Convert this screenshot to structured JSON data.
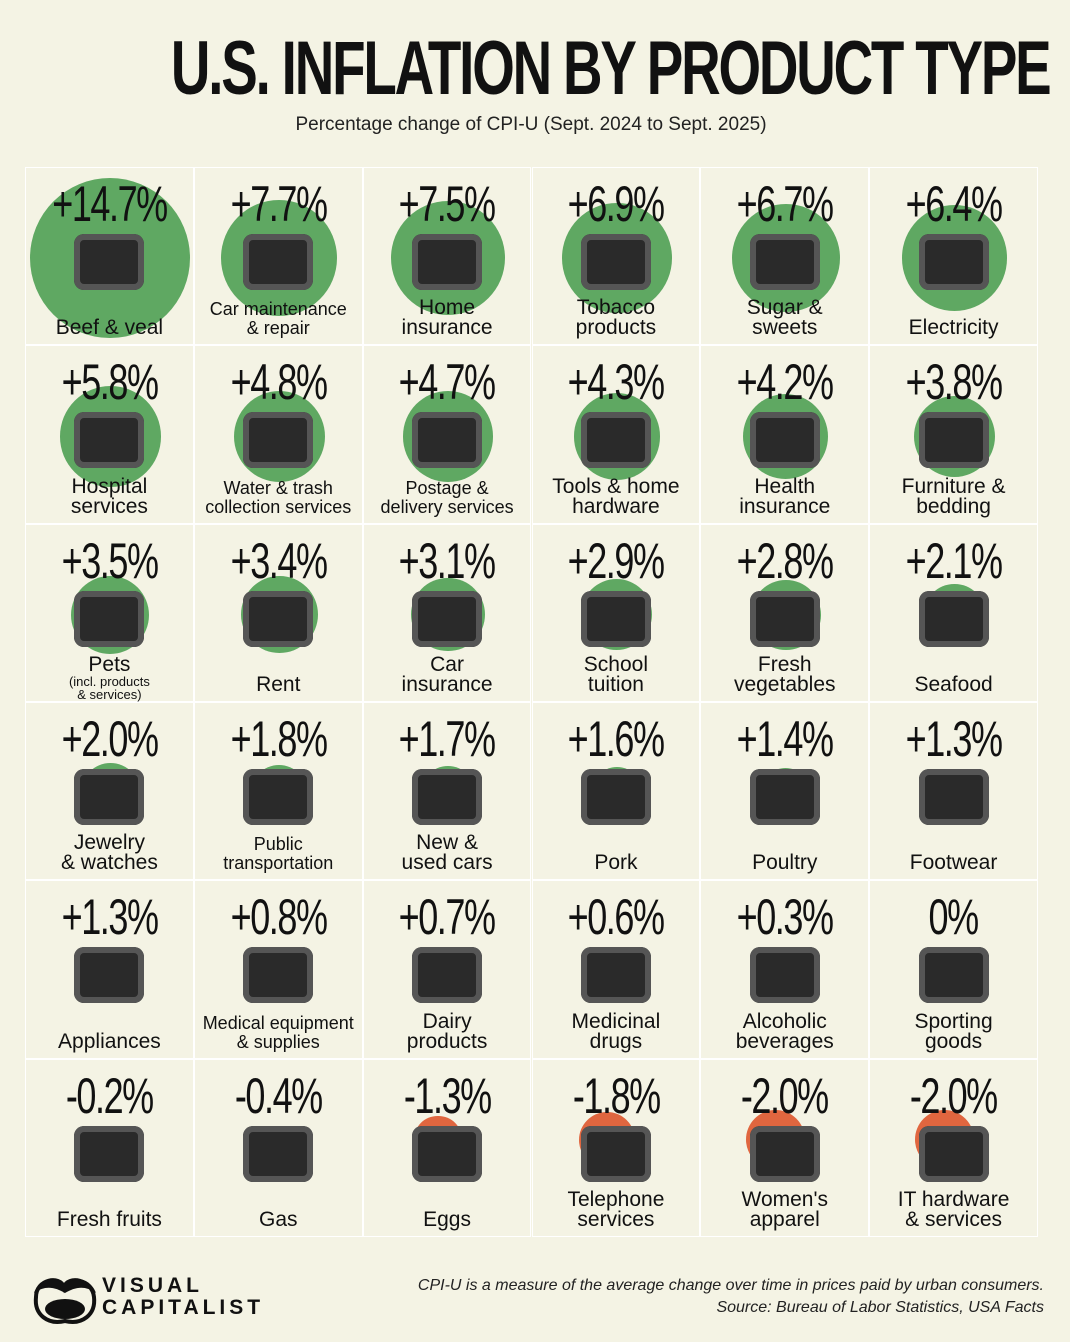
{
  "title": "U.S. INFLATION BY PRODUCT TYPE",
  "subtitle": "Percentage change of CPI-U (Sept. 2024 to Sept. 2025)",
  "colors": {
    "background": "#f4f3e4",
    "increase": "#5fa862",
    "decrease": "#e0663f",
    "grid": "#ffffff"
  },
  "chart_data": {
    "type": "bubble-grid",
    "unit": "% change",
    "items": [
      {
        "value_label": "+14.7%",
        "value": 14.7,
        "label": [
          "Beef & veal"
        ],
        "icon": "steak-icon"
      },
      {
        "value_label": "+7.7%",
        "value": 7.7,
        "label": [
          "Car maintenance",
          "& repair"
        ],
        "icon": "toolbox-icon"
      },
      {
        "value_label": "+7.5%",
        "value": 7.5,
        "label": [
          "Home",
          "insurance"
        ],
        "icon": "document-icon"
      },
      {
        "value_label": "+6.9%",
        "value": 6.9,
        "label": [
          "Tobacco",
          "products"
        ],
        "icon": "cigarette-pack-icon"
      },
      {
        "value_label": "+6.7%",
        "value": 6.7,
        "label": [
          "Sugar &",
          "sweets"
        ],
        "icon": "candy-icon"
      },
      {
        "value_label": "+6.4%",
        "value": 6.4,
        "label": [
          "Electricity"
        ],
        "icon": "lightbulb-icon"
      },
      {
        "value_label": "+5.8%",
        "value": 5.8,
        "label": [
          "Hospital",
          "services"
        ],
        "icon": "syringe-icon"
      },
      {
        "value_label": "+4.8%",
        "value": 4.8,
        "label": [
          "Water & trash",
          "collection services"
        ],
        "icon": "trash-bag-icon"
      },
      {
        "value_label": "+4.7%",
        "value": 4.7,
        "label": [
          "Postage &",
          "delivery services"
        ],
        "icon": "envelope-icon"
      },
      {
        "value_label": "+4.3%",
        "value": 4.3,
        "label": [
          "Tools & home",
          "hardware"
        ],
        "icon": "tool-case-icon"
      },
      {
        "value_label": "+4.2%",
        "value": 4.2,
        "label": [
          "Health",
          "insurance"
        ],
        "icon": "pill-bottle-icon"
      },
      {
        "value_label": "+3.8%",
        "value": 3.8,
        "label": [
          "Furniture &",
          "bedding"
        ],
        "icon": "chair-icon"
      },
      {
        "value_label": "+3.5%",
        "value": 3.5,
        "label": [
          "Pets"
        ],
        "sublabel": [
          "(incl. products",
          "& services)"
        ],
        "icon": "cat-icon"
      },
      {
        "value_label": "+3.4%",
        "value": 3.4,
        "label": [
          "Rent"
        ],
        "icon": "house-icon"
      },
      {
        "value_label": "+3.1%",
        "value": 3.1,
        "label": [
          "Car",
          "insurance"
        ],
        "icon": "car-crash-icon"
      },
      {
        "value_label": "+2.9%",
        "value": 2.9,
        "label": [
          "School",
          "tuition"
        ],
        "icon": "books-icon"
      },
      {
        "value_label": "+2.8%",
        "value": 2.8,
        "label": [
          "Fresh",
          "vegetables"
        ],
        "icon": "pepper-icon"
      },
      {
        "value_label": "+2.1%",
        "value": 2.1,
        "label": [
          "Seafood"
        ],
        "icon": "fish-steak-icon"
      },
      {
        "value_label": "+2.0%",
        "value": 2.0,
        "label": [
          "Jewelry",
          "& watches"
        ],
        "icon": "watch-icon"
      },
      {
        "value_label": "+1.8%",
        "value": 1.8,
        "label": [
          "Public",
          "transportation"
        ],
        "icon": "train-sign-icon"
      },
      {
        "value_label": "+1.7%",
        "value": 1.7,
        "label": [
          "New &",
          "used cars"
        ],
        "icon": "car-key-icon"
      },
      {
        "value_label": "+1.6%",
        "value": 1.6,
        "label": [
          "Pork"
        ],
        "icon": "sausage-icon"
      },
      {
        "value_label": "+1.4%",
        "value": 1.4,
        "label": [
          "Poultry"
        ],
        "icon": "chicken-icon"
      },
      {
        "value_label": "+1.3%",
        "value": 1.3,
        "label": [
          "Footwear"
        ],
        "icon": "sneakers-icon"
      },
      {
        "value_label": "+1.3%",
        "value": 1.3,
        "label": [
          "Appliances"
        ],
        "icon": "blender-icon"
      },
      {
        "value_label": "+0.8%",
        "value": 0.8,
        "label": [
          "Medical equipment",
          "& supplies"
        ],
        "icon": "first-aid-kit-icon"
      },
      {
        "value_label": "+0.7%",
        "value": 0.7,
        "label": [
          "Dairy",
          "products"
        ],
        "icon": "cheese-icon"
      },
      {
        "value_label": "+0.6%",
        "value": 0.6,
        "label": [
          "Medicinal",
          "drugs"
        ],
        "icon": "pill-blister-icon"
      },
      {
        "value_label": "+0.3%",
        "value": 0.3,
        "label": [
          "Alcoholic",
          "beverages"
        ],
        "icon": "bottle-icon"
      },
      {
        "value_label": "0%",
        "value": 0,
        "label": [
          "Sporting",
          "goods"
        ],
        "icon": "boxing-gloves-icon"
      },
      {
        "value_label": "-0.2%",
        "value": -0.2,
        "label": [
          "Fresh fruits"
        ],
        "icon": "mangosteen-icon"
      },
      {
        "value_label": "-0.4%",
        "value": -0.4,
        "label": [
          "Gas"
        ],
        "icon": "fuel-nozzle-icon"
      },
      {
        "value_label": "-1.3%",
        "value": -1.3,
        "label": [
          "Eggs"
        ],
        "icon": "egg-carton-icon"
      },
      {
        "value_label": "-1.8%",
        "value": -1.8,
        "label": [
          "Telephone",
          "services"
        ],
        "icon": "phone-icon"
      },
      {
        "value_label": "-2.0%",
        "value": -2.0,
        "label": [
          "Women's",
          "apparel"
        ],
        "icon": "dress-icon"
      },
      {
        "value_label": "-2.0%",
        "value": -2.0,
        "label": [
          "IT hardware",
          "& services"
        ],
        "icon": "computer-tower-icon"
      }
    ]
  },
  "logo": {
    "line1": "VISUAL",
    "line2": "CAPITALIST"
  },
  "footer": {
    "note": "CPI-U is a measure of the average change over time in prices paid by urban consumers.",
    "source": "Source: Bureau of Labor Statistics, USA Facts"
  }
}
